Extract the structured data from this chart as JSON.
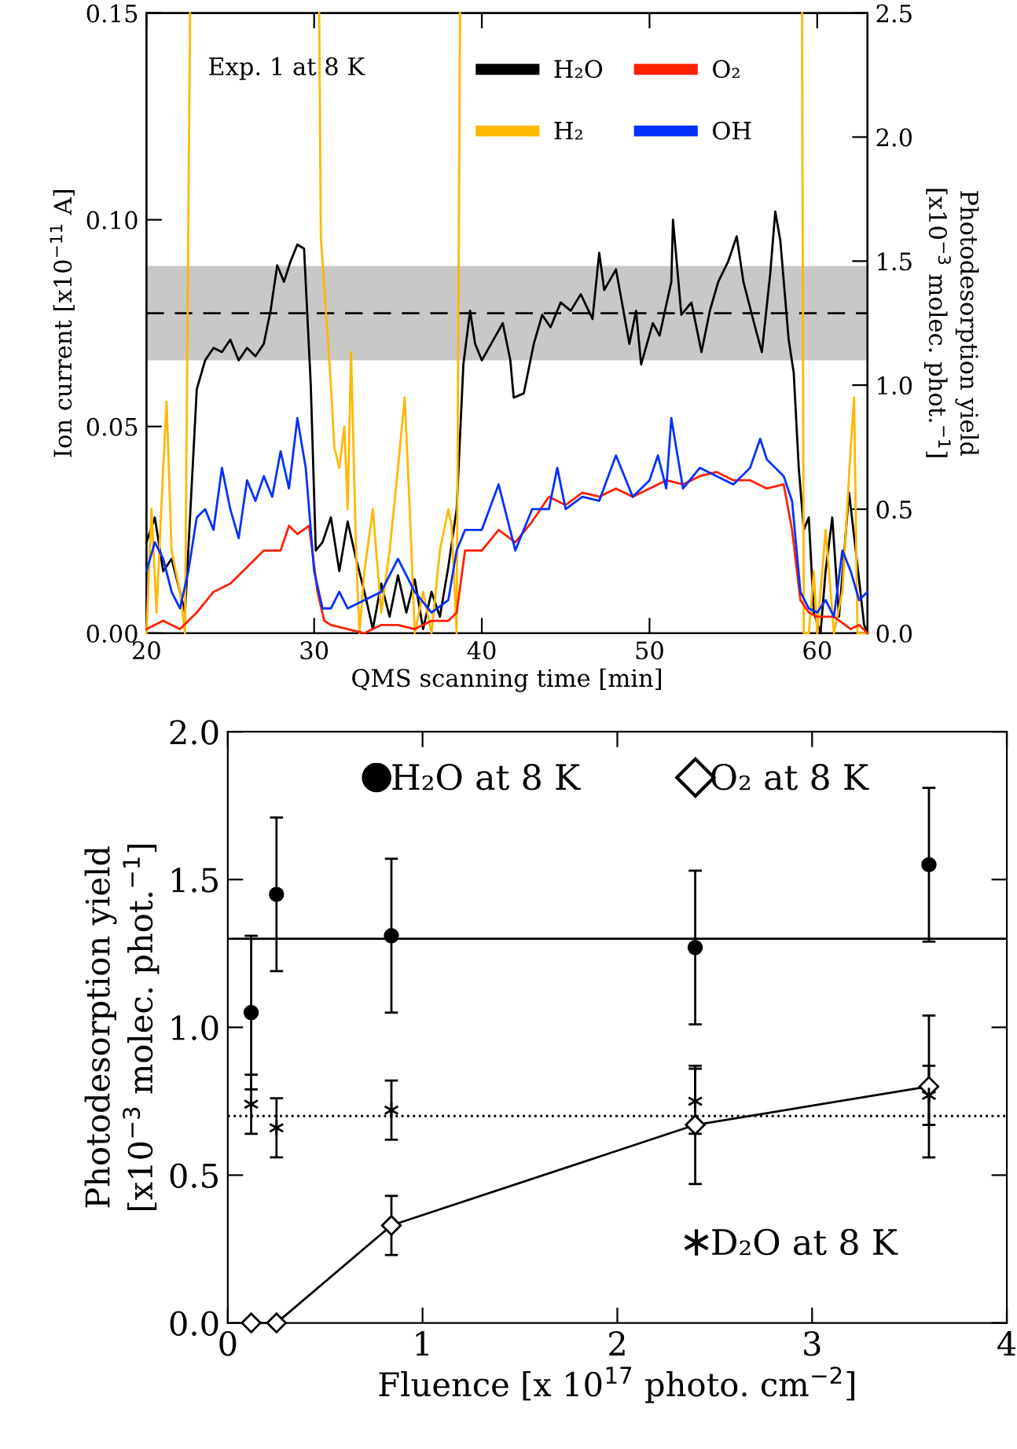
{
  "chart_data": [
    {
      "type": "line",
      "xlabel": "QMS scanning time [min]",
      "ylabel": "Ion current [x10$^{−11}$ A]",
      "y2label": "Photodesorption yield\n[x10$^{−3}$ molec. phot.$^{−1}$]",
      "annotations": [
        "Exp. 1 at 8 K"
      ],
      "xlim": [
        20,
        63
      ],
      "xticks": [
        20,
        30,
        40,
        50,
        60
      ],
      "ylim": [
        0,
        0.15
      ],
      "yticks": [
        {
          "value": 0,
          "label": "0.00"
        },
        {
          "value": 0.05,
          "label": "0.05"
        },
        {
          "value": 0.1,
          "label": "0.10"
        },
        {
          "value": 0.15,
          "label": "0.15"
        }
      ],
      "y2lim": [
        0,
        2.5
      ],
      "y2ticks": [
        {
          "value": 0,
          "label": "0.0"
        },
        {
          "value": 0.5,
          "label": "0.5"
        },
        {
          "value": 1,
          "label": "1.0"
        },
        {
          "value": 1.5,
          "label": "1.5"
        },
        {
          "value": 2,
          "label": "2.0"
        },
        {
          "value": 2.5,
          "label": "2.5"
        }
      ],
      "bands": [
        {
          "axis": "y2",
          "from": 1.1,
          "to": 1.48,
          "color": "#c8c8c8"
        }
      ],
      "ref_lines": [
        {
          "axis": "y2",
          "value": 1.29,
          "line_style": "dashed",
          "color": "#000000"
        }
      ],
      "legend": "top right",
      "grid": false,
      "series": [
        {
          "name": "H₂O",
          "color": "#000000",
          "x": [
            20,
            20.5,
            21,
            21.5,
            22,
            22.3,
            22.6,
            23,
            23.5,
            24,
            24.5,
            25,
            25.5,
            26,
            26.5,
            27,
            27.4,
            27.8,
            28.2,
            28.6,
            29,
            29.4,
            29.8,
            30.1,
            30.5,
            31,
            31.5,
            32,
            32.5,
            33,
            33.5,
            34,
            34.5,
            35,
            35.5,
            36,
            36.5,
            37,
            37.5,
            38,
            38.5,
            38.9,
            39.3,
            39.6,
            40,
            41.25,
            41.7,
            41.9,
            42.5,
            43.1,
            43.6,
            44.1,
            44.7,
            45.3,
            45.9,
            46.6,
            47,
            47.3,
            48,
            48.8,
            49.2,
            49.5,
            50.2,
            50.6,
            51.3,
            51.4,
            51.9,
            52.5,
            53.1,
            53.6,
            54.1,
            54.7,
            55.2,
            55.6,
            56.3,
            56.7,
            57.2,
            57.5,
            57.8,
            58.3,
            58.6,
            58.9,
            59.2,
            59.5,
            59.8,
            60.2,
            60.5,
            60.9,
            61.3,
            61.9,
            62.3,
            62.8,
            63
          ],
          "values": [
            0.022,
            0.028,
            0.015,
            0.018,
            0.01,
            0.005,
            0.028,
            0.059,
            0.066,
            0.069,
            0.068,
            0.071,
            0.066,
            0.069,
            0.067,
            0.07,
            0.078,
            0.089,
            0.085,
            0.09,
            0.094,
            0.093,
            0.06,
            0.02,
            0.022,
            0.028,
            0.015,
            0.027,
            0.018,
            0.01,
            0.001,
            0.012,
            0.004,
            0.014,
            0.005,
            0.013,
            0.001,
            0.01,
            0.004,
            0.016,
            0.03,
            0.065,
            0.078,
            0.07,
            0.066,
            0.075,
            0.066,
            0.057,
            0.058,
            0.07,
            0.077,
            0.074,
            0.08,
            0.078,
            0.082,
            0.076,
            0.092,
            0.083,
            0.088,
            0.07,
            0.078,
            0.065,
            0.075,
            0.072,
            0.085,
            0.1,
            0.077,
            0.08,
            0.068,
            0.078,
            0.085,
            0.09,
            0.096,
            0.085,
            0.074,
            0.068,
            0.087,
            0.102,
            0.095,
            0.071,
            0.063,
            0.04,
            0.025,
            0.028,
            0.005,
            0.0,
            0.015,
            0.028,
            0.004,
            0.034,
            0.02,
            0.002,
            0.0
          ]
        },
        {
          "name": "H₂",
          "color": "#ffb800",
          "x": [
            20,
            20.3,
            20.6,
            21,
            21.2,
            21.5,
            22,
            22.3,
            22.6,
            22.7,
            30.3,
            30.4,
            31,
            31.2,
            31.5,
            31.8,
            32,
            32.2,
            32.5,
            32.7,
            33,
            33.5,
            34,
            34.5,
            35,
            35.4,
            35.7,
            36,
            36.5,
            37,
            37.5,
            38,
            38.2,
            38.5,
            38.7,
            38.8,
            59.1,
            59.2,
            59.5,
            59.8,
            60,
            60.5,
            61,
            61.5,
            62,
            62.2,
            62.4,
            63
          ],
          "values": [
            0.0,
            0.03,
            0.005,
            0.04,
            0.056,
            0.02,
            0.01,
            0.0,
            0.15,
            null,
            0.15,
            0.096,
            0.06,
            0.045,
            0.04,
            0.05,
            0.03,
            0.068,
            0.02,
            0.0,
            0.015,
            0.03,
            0.005,
            0.02,
            0.04,
            0.057,
            0.03,
            0.0,
            0.01,
            0.0,
            0.02,
            0.03,
            0.026,
            0.0,
            0.15,
            null,
            0.15,
            0.0,
            0.0,
            0.015,
            0.0,
            0.025,
            0.0,
            0.01,
            0.045,
            0.057,
            0.0,
            0.0
          ]
        },
        {
          "name": "O₂",
          "color": "#ff2000",
          "x": [
            20,
            21,
            22,
            23,
            24,
            25,
            26,
            27,
            28,
            28.5,
            29,
            29.7,
            30.2,
            30.6,
            31,
            32,
            33,
            34,
            35,
            36,
            37,
            38,
            38.5,
            39,
            39.5,
            40,
            41,
            42,
            43,
            44,
            45,
            46,
            47,
            48,
            49,
            50,
            51,
            52,
            53,
            54,
            55,
            56,
            57,
            58,
            58.5,
            59,
            59.5,
            60,
            61,
            62,
            62.5,
            63
          ],
          "values": [
            0.001,
            0.003,
            0.001,
            0.005,
            0.01,
            0.012,
            0.016,
            0.02,
            0.02,
            0.026,
            0.024,
            0.026,
            0.01,
            0.003,
            0.002,
            0.001,
            0.0,
            0.002,
            0.002,
            0.001,
            0.003,
            0.003,
            0.005,
            0.02,
            0.02,
            0.02,
            0.025,
            0.022,
            0.027,
            0.033,
            0.031,
            0.034,
            0.033,
            0.035,
            0.033,
            0.035,
            0.037,
            0.036,
            0.038,
            0.039,
            0.037,
            0.037,
            0.035,
            0.036,
            0.025,
            0.008,
            0.005,
            0.004,
            0.004,
            0.001,
            0.002,
            0.0
          ]
        },
        {
          "name": "OH",
          "color": "#0030ff",
          "x": [
            20,
            20.5,
            21,
            21.5,
            22,
            22.5,
            23,
            23.5,
            24,
            24.5,
            25,
            25.5,
            26,
            26.5,
            27,
            27.5,
            28,
            28.5,
            29,
            29.5,
            30,
            30.5,
            31,
            31.5,
            32,
            33,
            34,
            35,
            36,
            37,
            38,
            38.5,
            39,
            40,
            41,
            42,
            43,
            44,
            44.5,
            45,
            46,
            47,
            48,
            49,
            50,
            50.5,
            51,
            51.3,
            52,
            53,
            54,
            55,
            56,
            56.6,
            57,
            57.5,
            58,
            58.5,
            59,
            59.5,
            60,
            60.5,
            61,
            61.5,
            62,
            62.5,
            63
          ],
          "values": [
            0.015,
            0.022,
            0.018,
            0.01,
            0.006,
            0.015,
            0.028,
            0.03,
            0.025,
            0.04,
            0.03,
            0.023,
            0.037,
            0.032,
            0.038,
            0.033,
            0.044,
            0.035,
            0.052,
            0.04,
            0.015,
            0.006,
            0.006,
            0.01,
            0.006,
            0.008,
            0.01,
            0.018,
            0.01,
            0.005,
            0.008,
            0.02,
            0.025,
            0.025,
            0.036,
            0.02,
            0.03,
            0.03,
            0.04,
            0.03,
            0.033,
            0.032,
            0.043,
            0.033,
            0.037,
            0.043,
            0.035,
            0.052,
            0.035,
            0.04,
            0.038,
            0.036,
            0.04,
            0.047,
            0.042,
            0.04,
            0.038,
            0.032,
            0.01,
            0.006,
            0.005,
            0.008,
            0.004,
            0.02,
            0.015,
            0.008,
            0.01
          ]
        }
      ]
    },
    {
      "type": "scatter",
      "xlabel": "Fluence [x 10$^{17}$ photo. cm$^{−2}$]",
      "ylabel": "Photodesorption yield\n[x10$^{−3}$ molec. phot.$^{−1}$]",
      "xlim": [
        0,
        4
      ],
      "xticks": [
        0,
        1,
        2,
        3,
        4
      ],
      "ylim": [
        0,
        2
      ],
      "yticks": [
        {
          "value": 0,
          "label": "0.0"
        },
        {
          "value": 0.5,
          "label": "0.5"
        },
        {
          "value": 1,
          "label": "1.0"
        },
        {
          "value": 1.5,
          "label": "1.5"
        },
        {
          "value": 2,
          "label": "2.0"
        }
      ],
      "ref_lines": [
        {
          "axis": "y",
          "value": 1.3,
          "line_style": "solid",
          "color": "#000000"
        },
        {
          "axis": "y",
          "value": 0.7,
          "line_style": "dotted",
          "color": "#000000"
        }
      ],
      "legend": "top",
      "grid": false,
      "series": [
        {
          "name": "H₂O at 8 K",
          "type": "scatter",
          "marker": "circle",
          "color": "#000000",
          "x": [
            0.12,
            0.25,
            0.84,
            2.4,
            3.6
          ],
          "values": [
            1.05,
            1.45,
            1.31,
            1.27,
            1.55
          ],
          "errors": [
            0.26,
            0.26,
            0.26,
            0.26,
            0.26
          ]
        },
        {
          "name": "O₂ at 8 K",
          "type": "line",
          "marker": "diamond",
          "color": "#000000",
          "x": [
            0.12,
            0.25,
            0.84,
            2.4,
            3.6
          ],
          "values": [
            0.0,
            0.0,
            0.33,
            0.67,
            0.8
          ],
          "errors": [
            null,
            null,
            0.1,
            0.2,
            0.24
          ]
        },
        {
          "name": "D₂O at 8 K",
          "type": "scatter",
          "marker": "cross",
          "color": "#000000",
          "x": [
            0.12,
            0.25,
            0.84,
            2.4,
            3.6
          ],
          "values": [
            0.74,
            0.66,
            0.72,
            0.75,
            0.77
          ],
          "errors": [
            0.1,
            0.1,
            0.1,
            0.11,
            0.1
          ]
        }
      ]
    }
  ]
}
